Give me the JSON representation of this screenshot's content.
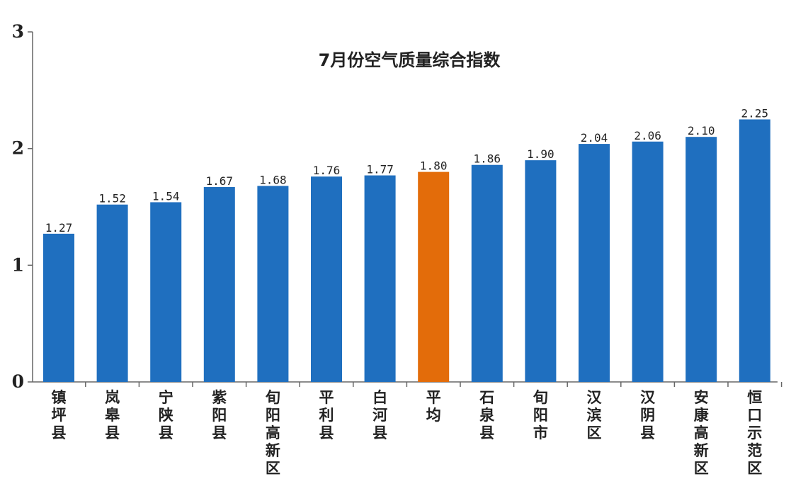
{
  "chart_data": {
    "type": "bar",
    "title": "7月份空气质量综合指数",
    "xlabel": "",
    "ylabel": "",
    "ylim": [
      0,
      3
    ],
    "yticks": [
      "0",
      "1",
      "2",
      "3"
    ],
    "grid": false,
    "legend": "none",
    "categories": [
      "镇坪县",
      "岚皋县",
      "宁陕县",
      "紫阳县",
      "旬阳高新区",
      "平利县",
      "白河县",
      "平均",
      "石泉县",
      "旬阳市",
      "汉滨区",
      "汉阴县",
      "安康高新区",
      "恒口示范区"
    ],
    "values": [
      1.27,
      1.52,
      1.54,
      1.67,
      1.68,
      1.76,
      1.77,
      1.8,
      1.86,
      1.9,
      2.04,
      2.06,
      2.1,
      2.25
    ],
    "value_labels": [
      "1.27",
      "1.52",
      "1.54",
      "1.67",
      "1.68",
      "1.76",
      "1.77",
      "1.80",
      "1.86",
      "1.90",
      "2.04",
      "2.06",
      "2.10",
      "2.25"
    ],
    "colors": {
      "bar": "#1f6fbf",
      "highlight": "#e36c0a",
      "axis": "#666666"
    },
    "highlight_category": "平均"
  }
}
